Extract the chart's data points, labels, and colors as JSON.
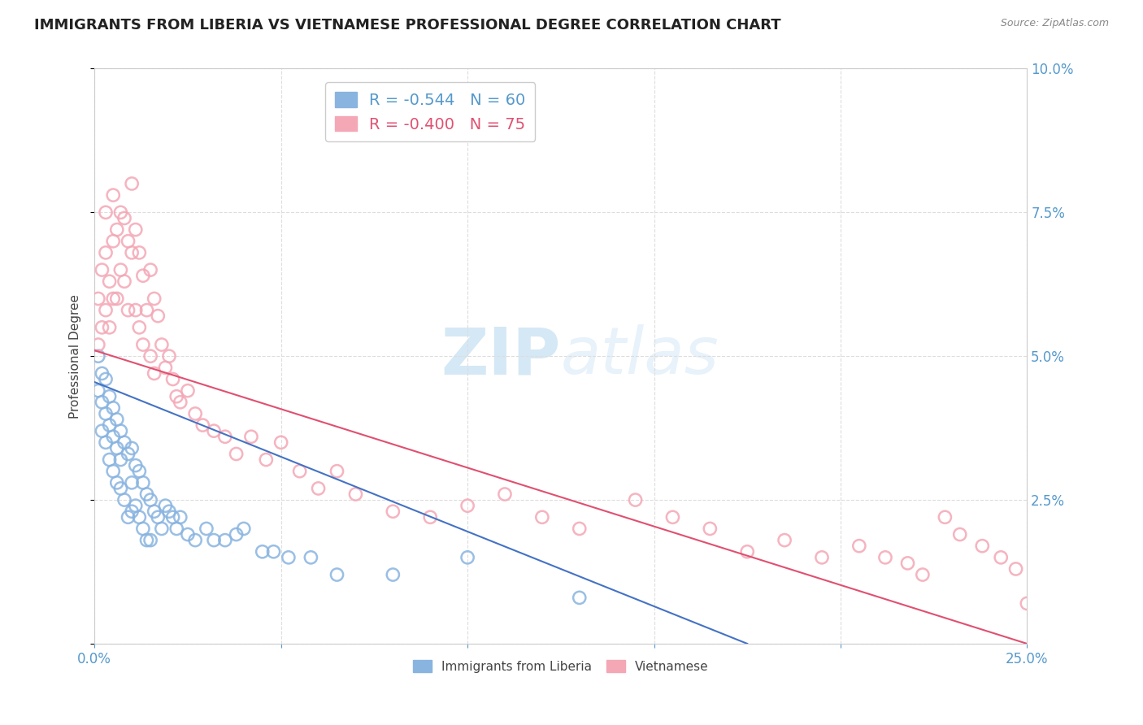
{
  "title": "IMMIGRANTS FROM LIBERIA VS VIETNAMESE PROFESSIONAL DEGREE CORRELATION CHART",
  "source": "Source: ZipAtlas.com",
  "ylabel": "Professional Degree",
  "watermark_zip": "ZIP",
  "watermark_atlas": "atlas",
  "xlim": [
    0.0,
    0.25
  ],
  "ylim": [
    0.0,
    0.1
  ],
  "xtick_vals": [
    0.0,
    0.05,
    0.1,
    0.15,
    0.2,
    0.25
  ],
  "xtick_labels": [
    "0.0%",
    "",
    "",
    "",
    "",
    "25.0%"
  ],
  "ytick_vals": [
    0.0,
    0.025,
    0.05,
    0.075,
    0.1
  ],
  "ytick_labels": [
    "",
    "2.5%",
    "5.0%",
    "7.5%",
    "10.0%"
  ],
  "series": [
    {
      "name": "Immigrants from Liberia",
      "R": "-0.544",
      "N": "60",
      "color": "#89b4e0",
      "line_color": "#4472c4",
      "x": [
        0.001,
        0.001,
        0.002,
        0.002,
        0.002,
        0.003,
        0.003,
        0.003,
        0.004,
        0.004,
        0.004,
        0.005,
        0.005,
        0.005,
        0.006,
        0.006,
        0.006,
        0.007,
        0.007,
        0.007,
        0.008,
        0.008,
        0.009,
        0.009,
        0.01,
        0.01,
        0.01,
        0.011,
        0.011,
        0.012,
        0.012,
        0.013,
        0.013,
        0.014,
        0.014,
        0.015,
        0.015,
        0.016,
        0.017,
        0.018,
        0.019,
        0.02,
        0.021,
        0.022,
        0.023,
        0.025,
        0.027,
        0.03,
        0.032,
        0.035,
        0.038,
        0.04,
        0.045,
        0.048,
        0.052,
        0.058,
        0.065,
        0.08,
        0.1,
        0.13
      ],
      "y": [
        0.05,
        0.044,
        0.047,
        0.042,
        0.037,
        0.046,
        0.04,
        0.035,
        0.043,
        0.038,
        0.032,
        0.041,
        0.036,
        0.03,
        0.039,
        0.034,
        0.028,
        0.037,
        0.032,
        0.027,
        0.035,
        0.025,
        0.033,
        0.022,
        0.034,
        0.028,
        0.023,
        0.031,
        0.024,
        0.03,
        0.022,
        0.028,
        0.02,
        0.026,
        0.018,
        0.025,
        0.018,
        0.023,
        0.022,
        0.02,
        0.024,
        0.023,
        0.022,
        0.02,
        0.022,
        0.019,
        0.018,
        0.02,
        0.018,
        0.018,
        0.019,
        0.02,
        0.016,
        0.016,
        0.015,
        0.015,
        0.012,
        0.012,
        0.015,
        0.008
      ],
      "trendline_x": [
        0.0,
        0.175
      ],
      "trendline_y": [
        0.0455,
        0.0
      ]
    },
    {
      "name": "Vietnamese",
      "R": "-0.400",
      "N": "75",
      "color": "#f4a7b5",
      "line_color": "#e05070",
      "x": [
        0.001,
        0.001,
        0.002,
        0.002,
        0.003,
        0.003,
        0.003,
        0.004,
        0.004,
        0.005,
        0.005,
        0.005,
        0.006,
        0.006,
        0.007,
        0.007,
        0.008,
        0.008,
        0.009,
        0.009,
        0.01,
        0.01,
        0.011,
        0.011,
        0.012,
        0.012,
        0.013,
        0.013,
        0.014,
        0.015,
        0.015,
        0.016,
        0.016,
        0.017,
        0.018,
        0.019,
        0.02,
        0.021,
        0.022,
        0.023,
        0.025,
        0.027,
        0.029,
        0.032,
        0.035,
        0.038,
        0.042,
        0.046,
        0.05,
        0.055,
        0.06,
        0.065,
        0.07,
        0.08,
        0.09,
        0.1,
        0.11,
        0.12,
        0.13,
        0.145,
        0.155,
        0.165,
        0.175,
        0.185,
        0.195,
        0.205,
        0.212,
        0.218,
        0.222,
        0.228,
        0.232,
        0.238,
        0.243,
        0.247,
        0.25
      ],
      "y": [
        0.06,
        0.052,
        0.065,
        0.055,
        0.075,
        0.068,
        0.058,
        0.063,
        0.055,
        0.078,
        0.07,
        0.06,
        0.072,
        0.06,
        0.075,
        0.065,
        0.074,
        0.063,
        0.07,
        0.058,
        0.08,
        0.068,
        0.072,
        0.058,
        0.068,
        0.055,
        0.064,
        0.052,
        0.058,
        0.065,
        0.05,
        0.06,
        0.047,
        0.057,
        0.052,
        0.048,
        0.05,
        0.046,
        0.043,
        0.042,
        0.044,
        0.04,
        0.038,
        0.037,
        0.036,
        0.033,
        0.036,
        0.032,
        0.035,
        0.03,
        0.027,
        0.03,
        0.026,
        0.023,
        0.022,
        0.024,
        0.026,
        0.022,
        0.02,
        0.025,
        0.022,
        0.02,
        0.016,
        0.018,
        0.015,
        0.017,
        0.015,
        0.014,
        0.012,
        0.022,
        0.019,
        0.017,
        0.015,
        0.013,
        0.007
      ],
      "trendline_x": [
        0.0,
        0.25
      ],
      "trendline_y": [
        0.051,
        0.0
      ]
    }
  ],
  "grid_color": "#dddddd",
  "axis_color": "#cccccc",
  "tick_color": "#5599cc",
  "label_color": "#444444",
  "background_color": "#ffffff",
  "title_fontsize": 13,
  "axis_label_fontsize": 11,
  "tick_fontsize": 12,
  "legend_fontsize": 14,
  "watermark_color": "#d5e8f5",
  "watermark_fontsize_zip": 58,
  "watermark_fontsize_atlas": 58
}
